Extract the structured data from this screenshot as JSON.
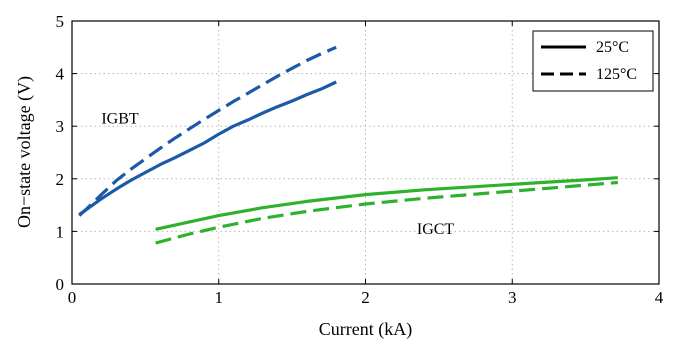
{
  "chart_data": {
    "type": "line",
    "title": "",
    "xlabel": "Current (kA)",
    "ylabel": "On−state voltage (V)",
    "xlim": [
      0,
      4
    ],
    "ylim": [
      0,
      5
    ],
    "xticks": [
      "0",
      "1",
      "2",
      "3",
      "4"
    ],
    "yticks": [
      "0",
      "1",
      "2",
      "3",
      "4",
      "5"
    ],
    "grid": true,
    "legend": {
      "placement": "top-right",
      "entries": [
        {
          "label": "25°C",
          "style": "solid"
        },
        {
          "label": "125°C",
          "style": "dashed"
        }
      ]
    },
    "annotations": [
      {
        "text": "IGBT",
        "x": 0.2,
        "y": 3.05
      },
      {
        "text": "IGCT",
        "x": 2.35,
        "y": 0.95
      }
    ],
    "series": [
      {
        "group": "IGBT",
        "temperature": "25°C",
        "style": "solid",
        "color": "#1a5aa8",
        "x": [
          0.05,
          0.1,
          0.2,
          0.3,
          0.4,
          0.5,
          0.6,
          0.7,
          0.8,
          0.9,
          1.0,
          1.1,
          1.2,
          1.3,
          1.4,
          1.5,
          1.6,
          1.7,
          1.8
        ],
        "y": [
          1.32,
          1.42,
          1.62,
          1.8,
          1.97,
          2.12,
          2.27,
          2.4,
          2.54,
          2.68,
          2.85,
          3.0,
          3.12,
          3.25,
          3.37,
          3.48,
          3.6,
          3.71,
          3.84
        ]
      },
      {
        "group": "IGBT",
        "temperature": "125°C",
        "style": "dashed",
        "color": "#1a5aa8",
        "x": [
          0.05,
          0.1,
          0.2,
          0.3,
          0.4,
          0.5,
          0.6,
          0.7,
          0.8,
          0.9,
          1.0,
          1.1,
          1.2,
          1.3,
          1.4,
          1.5,
          1.6,
          1.7,
          1.8
        ],
        "y": [
          1.3,
          1.43,
          1.7,
          1.96,
          2.18,
          2.38,
          2.58,
          2.77,
          2.95,
          3.13,
          3.3,
          3.47,
          3.63,
          3.79,
          3.95,
          4.1,
          4.25,
          4.38,
          4.5
        ]
      },
      {
        "group": "IGCT",
        "temperature": "25°C",
        "style": "solid",
        "color": "#2eb22e",
        "x": [
          0.57,
          0.8,
          1.0,
          1.3,
          1.6,
          2.0,
          2.4,
          2.8,
          3.2,
          3.5,
          3.72
        ],
        "y": [
          1.04,
          1.18,
          1.3,
          1.45,
          1.57,
          1.7,
          1.79,
          1.86,
          1.93,
          1.98,
          2.02
        ]
      },
      {
        "group": "IGCT",
        "temperature": "125°C",
        "style": "dashed",
        "color": "#2eb22e",
        "x": [
          0.57,
          0.8,
          1.0,
          1.3,
          1.6,
          2.0,
          2.4,
          2.8,
          3.2,
          3.5,
          3.72
        ],
        "y": [
          0.78,
          0.95,
          1.08,
          1.25,
          1.38,
          1.52,
          1.63,
          1.72,
          1.81,
          1.88,
          1.93
        ]
      }
    ]
  }
}
